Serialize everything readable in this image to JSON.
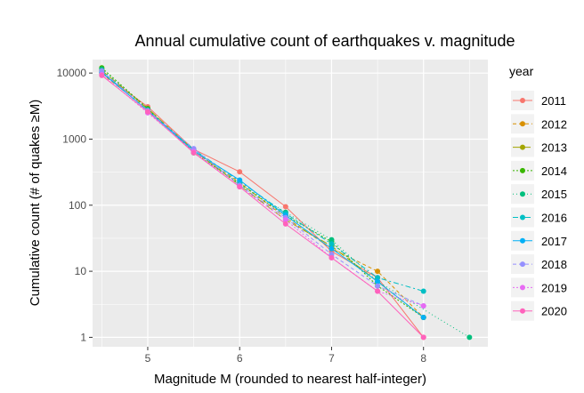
{
  "chart_data": {
    "type": "line",
    "title": "Annual cumulative count of earthquakes v. magnitude",
    "xlabel": "Magnitude M (rounded to nearest half-integer)",
    "ylabel": "Cumulative count (# of quakes ≥M)",
    "xlim": [
      4.4,
      8.7
    ],
    "ylim": [
      0.72,
      16000
    ],
    "y_scale": "log10",
    "grid": true,
    "x_ticks": [
      5,
      6,
      7,
      8
    ],
    "x_tick_labels": [
      "5",
      "6",
      "7",
      "8"
    ],
    "y_ticks": [
      1,
      10,
      100,
      1000,
      10000
    ],
    "y_tick_labels": [
      "1",
      "10",
      "100",
      "1000",
      "10000"
    ],
    "legend": {
      "title": "year",
      "position": "right"
    },
    "series": [
      {
        "name": "2011",
        "color": "#F8766D",
        "dash": "solid",
        "x": [
          4.5,
          5,
          5.5,
          6,
          6.5,
          7,
          7.5,
          8
        ],
        "y": [
          10000,
          3100,
          700,
          320,
          95,
          20,
          8,
          1
        ]
      },
      {
        "name": "2012",
        "color": "#D89000",
        "dash": "4,3",
        "x": [
          4.5,
          5,
          5.5,
          6,
          6.5,
          7,
          7.5,
          8
        ],
        "y": [
          9800,
          2800,
          650,
          220,
          65,
          22,
          10,
          2
        ]
      },
      {
        "name": "2013",
        "color": "#A3A500",
        "dash": "8,4",
        "x": [
          4.5,
          5,
          5.5,
          6,
          6.5,
          7,
          7.5,
          8
        ],
        "y": [
          11000,
          2900,
          680,
          200,
          60,
          24,
          7,
          2
        ]
      },
      {
        "name": "2014",
        "color": "#39B600",
        "dash": "2,2",
        "x": [
          4.5,
          5,
          5.5,
          6,
          6.5,
          7,
          7.5,
          8
        ],
        "y": [
          12000,
          2900,
          620,
          210,
          70,
          28,
          6,
          2
        ]
      },
      {
        "name": "2015",
        "color": "#00BF7D",
        "dash": "1,3",
        "x": [
          4.5,
          5,
          5.5,
          6,
          6.5,
          7,
          7.5,
          8.5
        ],
        "y": [
          11500,
          2800,
          670,
          210,
          78,
          30,
          7,
          1
        ]
      },
      {
        "name": "2016",
        "color": "#00BFC4",
        "dash": "6,3,2,3",
        "x": [
          4.5,
          5,
          5.5,
          6,
          6.5,
          7,
          7.5,
          8
        ],
        "y": [
          10500,
          2700,
          700,
          230,
          75,
          26,
          8,
          5
        ]
      },
      {
        "name": "2017",
        "color": "#00B0F6",
        "dash": "solid",
        "x": [
          4.5,
          5,
          5.5,
          6,
          6.5,
          7,
          7.5,
          8
        ],
        "y": [
          10200,
          2700,
          660,
          240,
          70,
          22,
          7,
          2
        ]
      },
      {
        "name": "2018",
        "color": "#9590FF",
        "dash": "4,3",
        "x": [
          4.5,
          5,
          5.5,
          6,
          6.5,
          7,
          7.5,
          8
        ],
        "y": [
          10800,
          2700,
          720,
          200,
          65,
          18,
          6,
          3
        ]
      },
      {
        "name": "2019",
        "color": "#E76BF3",
        "dash": "2,2",
        "x": [
          4.5,
          5,
          5.5,
          6,
          6.5,
          7,
          7.5,
          8
        ],
        "y": [
          9500,
          2500,
          650,
          190,
          60,
          16,
          5,
          3
        ]
      },
      {
        "name": "2020",
        "color": "#FF62BC",
        "dash": "solid",
        "x": [
          4.5,
          5,
          5.5,
          6,
          6.5,
          7,
          7.5,
          8
        ],
        "y": [
          9200,
          2600,
          620,
          190,
          52,
          16,
          5,
          1
        ]
      }
    ]
  }
}
